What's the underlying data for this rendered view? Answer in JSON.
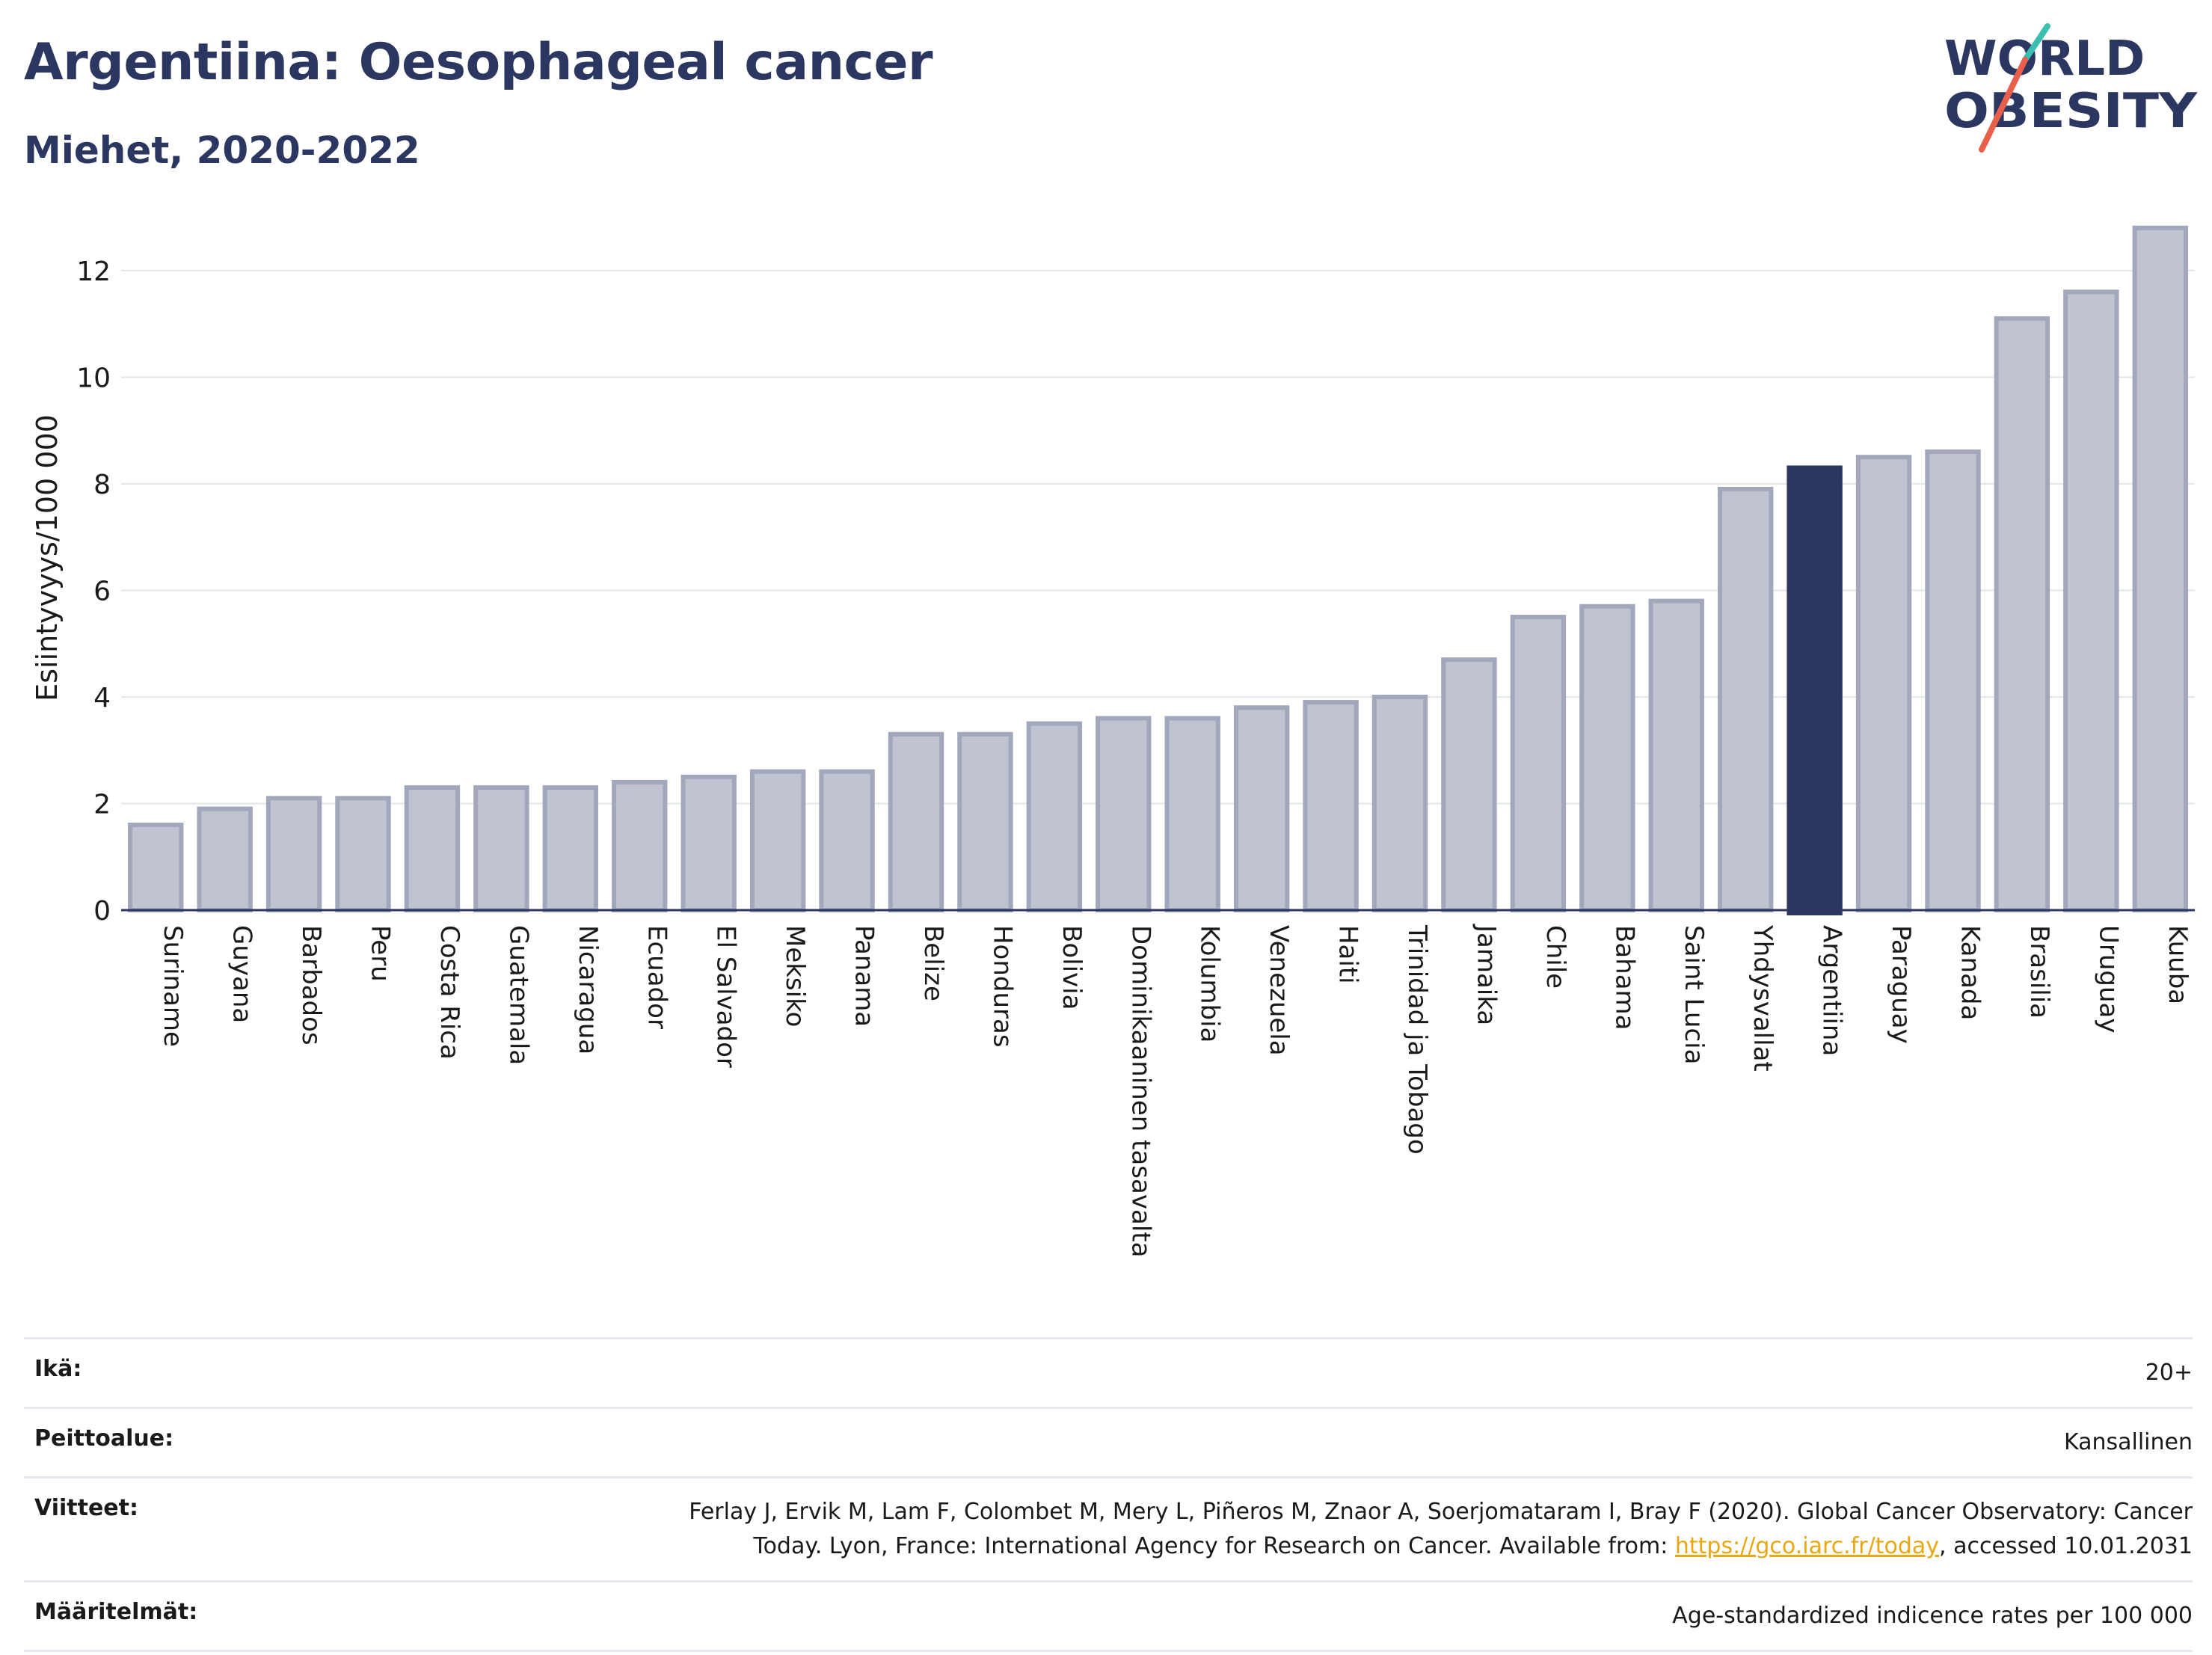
{
  "header": {
    "title": "Argentiina: Oesophageal cancer",
    "subtitle": "Miehet, 2020-2022"
  },
  "logo": {
    "line1": "WORLD",
    "line2": "OBESITY",
    "text_color": "#2b3760",
    "slash_colors": [
      "#3bbfb0",
      "#e8604c"
    ]
  },
  "colors": {
    "bar_default": "#c0c3d0",
    "bar_default_stroke": "#a2a7bc",
    "bar_highlight": "#2b3760",
    "grid": "#e3e5ec",
    "axis": "#2b3760"
  },
  "chart_data": {
    "type": "bar",
    "ylabel": "Esiintyvyys/100 000",
    "ylim": [
      0,
      13.4
    ],
    "yticks": [
      0,
      2,
      4,
      6,
      8,
      10,
      12
    ],
    "grid": true,
    "highlight": "Argentiina",
    "categories": [
      "Suriname",
      "Guyana",
      "Barbados",
      "Peru",
      "Costa Rica",
      "Guatemala",
      "Nicaragua",
      "Ecuador",
      "El Salvador",
      "Meksiko",
      "Panama",
      "Belize",
      "Honduras",
      "Bolivia",
      "Dominikaaninen tasavalta",
      "Kolumbia",
      "Venezuela",
      "Haiti",
      "Trinidad ja Tobago",
      "Jamaika",
      "Chile",
      "Bahama",
      "Saint Lucia",
      "Yhdysvallat",
      "Argentiina",
      "Paraguay",
      "Kanada",
      "Brasilia",
      "Uruguay",
      "Kuuba"
    ],
    "values": [
      1.6,
      1.9,
      2.1,
      2.1,
      2.3,
      2.3,
      2.3,
      2.4,
      2.5,
      2.6,
      2.6,
      3.3,
      3.3,
      3.5,
      3.6,
      3.6,
      3.8,
      3.9,
      4.0,
      4.7,
      5.5,
      5.7,
      5.8,
      7.9,
      8.3,
      8.5,
      8.6,
      11.1,
      11.6,
      12.8
    ]
  },
  "info": {
    "age_label": "Ikä:",
    "age_value": "20+",
    "coverage_label": "Peittoalue:",
    "coverage_value": "Kansallinen",
    "refs_label": "Viitteet:",
    "refs_line1": "Ferlay J, Ervik M, Lam F, Colombet M, Mery L, Piñeros M, Znaor A, Soerjomataram I, Bray F (2020). Global Cancer Observatory: Cancer",
    "refs_line2_before": "Today. Lyon, France: International Agency for Research on Cancer. Available from: ",
    "refs_link": "https://gco.iarc.fr/today",
    "refs_line2_after": ", accessed 10.01.2031",
    "defs_label": "Määritelmät:",
    "defs_value": "Age-standardized indicence rates per 100 000"
  }
}
